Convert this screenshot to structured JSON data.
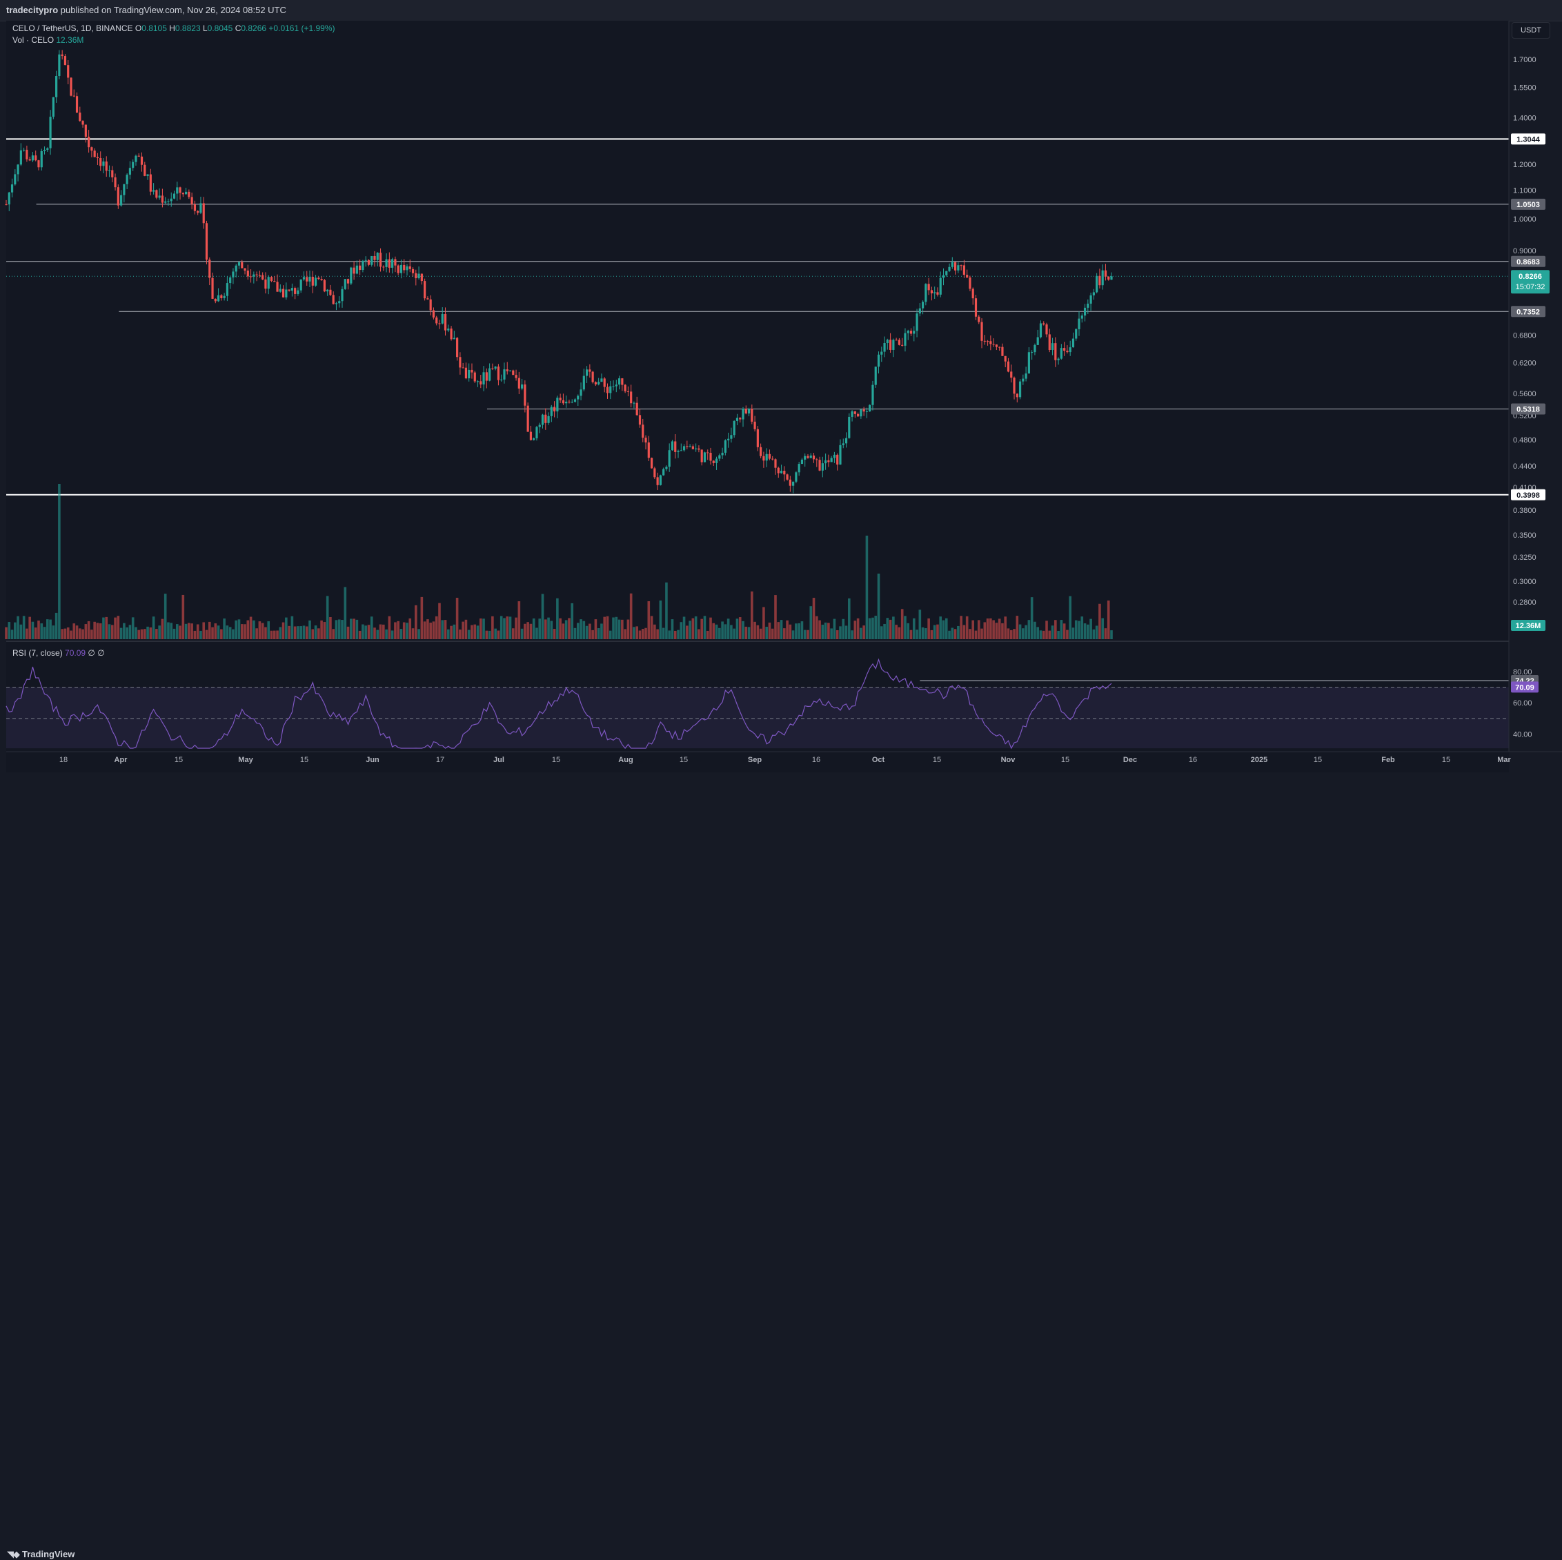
{
  "publisher": {
    "user": "tradecitypro",
    "text": " published on TradingView.com, Nov 26, 2024 08:52 UTC"
  },
  "legend": {
    "symbol": "CELO / TetherUS, 1D, BINANCE",
    "open_label": "O",
    "open": "0.8105",
    "high_label": "H",
    "high": "0.8823",
    "low_label": "L",
    "low": "0.8045",
    "close_label": "C",
    "close": "0.8266",
    "change": "+0.0161 (+1.99%)"
  },
  "volume_legend": {
    "label": "Vol · CELO",
    "value": "12.36M"
  },
  "rsi_legend": {
    "label": "RSI (7, close)",
    "value": "70.09",
    "extra": "∅ ∅"
  },
  "currency_button": "USDT",
  "footer": {
    "brand": "TradingView"
  },
  "colors": {
    "up": "#26a69a",
    "down": "#ef5350",
    "rsi": "#7e57c2",
    "background": "#131722",
    "grid_text": "#b2b5be"
  },
  "chart_data": {
    "type": "candlestick",
    "symbol": "CELOUSDT",
    "timeframe": "1D",
    "y_scale": "log",
    "y_ticks": [
      0.28,
      0.3,
      0.325,
      0.35,
      0.38,
      0.41,
      0.44,
      0.48,
      0.52,
      0.56,
      0.62,
      0.68,
      0.9,
      1.0,
      1.1,
      1.2,
      1.4,
      1.55,
      1.7
    ],
    "y_tick_labels": [
      "0.2800",
      "0.3000",
      "0.3250",
      "0.3500",
      "0.3800",
      "0.4100",
      "0.4400",
      "0.4800",
      "0.5200",
      "0.5600",
      "0.6200",
      "0.6800",
      "0.9000",
      "1.0000",
      "1.1000",
      "1.2000",
      "1.4000",
      "1.5500",
      "1.7000"
    ],
    "x_labels": [
      "18",
      "Apr",
      "15",
      "May",
      "15",
      "Jun",
      "17",
      "Jul",
      "15",
      "Aug",
      "15",
      "Sep",
      "16",
      "Oct",
      "15",
      "Nov",
      "15",
      "Dec",
      "16",
      "2025",
      "15",
      "Feb",
      "15",
      "Mar"
    ],
    "horizontal_levels": [
      {
        "price": 1.3044,
        "label": "1.3044",
        "style": "white-thick",
        "start_frac": 0
      },
      {
        "price": 1.0503,
        "label": "1.0503",
        "style": "grey",
        "start_frac": 0.02
      },
      {
        "price": 0.8683,
        "label": "0.8683",
        "style": "grey",
        "start_frac": 0
      },
      {
        "price": 0.7352,
        "label": "0.7352",
        "style": "grey",
        "start_frac": 0.075
      },
      {
        "price": 0.5318,
        "label": "0.5318",
        "style": "grey",
        "start_frac": 0.32
      },
      {
        "price": 0.3998,
        "label": "0.3998",
        "style": "white-thick",
        "start_frac": 0
      }
    ],
    "last_price": {
      "price": 0.8266,
      "label": "0.8266",
      "countdown": "15:07:32"
    },
    "volume_last_label": "12.36M",
    "rsi": {
      "period": 7,
      "last": 70.09,
      "level_label": "74.22",
      "ticks": [
        40,
        60,
        80
      ],
      "tick_labels": [
        "40.00",
        "60.00",
        "80.00"
      ],
      "band": [
        30,
        70
      ]
    },
    "keypoints": [
      [
        0,
        1.05
      ],
      [
        5,
        1.26
      ],
      [
        10,
        1.2
      ],
      [
        14,
        1.25
      ],
      [
        18,
        1.74
      ],
      [
        23,
        1.48
      ],
      [
        28,
        1.28
      ],
      [
        33,
        1.2
      ],
      [
        38,
        1.07
      ],
      [
        44,
        1.26
      ],
      [
        50,
        1.08
      ],
      [
        55,
        1.07
      ],
      [
        60,
        1.1
      ],
      [
        66,
        1.03
      ],
      [
        70,
        0.76
      ],
      [
        74,
        0.79
      ],
      [
        78,
        0.86
      ],
      [
        84,
        0.84
      ],
      [
        90,
        0.8
      ],
      [
        96,
        0.78
      ],
      [
        100,
        0.8
      ],
      [
        106,
        0.83
      ],
      [
        112,
        0.75
      ],
      [
        118,
        0.85
      ],
      [
        124,
        0.88
      ],
      [
        130,
        0.86
      ],
      [
        136,
        0.84
      ],
      [
        140,
        0.82
      ],
      [
        145,
        0.73
      ],
      [
        150,
        0.7
      ],
      [
        155,
        0.6
      ],
      [
        160,
        0.58
      ],
      [
        165,
        0.6
      ],
      [
        170,
        0.6
      ],
      [
        175,
        0.57
      ],
      [
        178,
        0.47
      ],
      [
        183,
        0.52
      ],
      [
        188,
        0.55
      ],
      [
        193,
        0.56
      ],
      [
        198,
        0.6
      ],
      [
        203,
        0.57
      ],
      [
        208,
        0.58
      ],
      [
        213,
        0.53
      ],
      [
        218,
        0.46
      ],
      [
        221,
        0.41
      ],
      [
        226,
        0.47
      ],
      [
        232,
        0.47
      ],
      [
        238,
        0.45
      ],
      [
        243,
        0.46
      ],
      [
        248,
        0.52
      ],
      [
        252,
        0.53
      ],
      [
        256,
        0.46
      ],
      [
        262,
        0.44
      ],
      [
        266,
        0.41
      ],
      [
        270,
        0.45
      ],
      [
        276,
        0.44
      ],
      [
        282,
        0.45
      ],
      [
        287,
        0.52
      ],
      [
        292,
        0.52
      ],
      [
        296,
        0.64
      ],
      [
        300,
        0.66
      ],
      [
        304,
        0.66
      ],
      [
        308,
        0.7
      ],
      [
        312,
        0.8
      ],
      [
        316,
        0.79
      ],
      [
        320,
        0.86
      ],
      [
        324,
        0.85
      ],
      [
        328,
        0.77
      ],
      [
        331,
        0.68
      ],
      [
        335,
        0.65
      ],
      [
        339,
        0.63
      ],
      [
        343,
        0.55
      ],
      [
        347,
        0.63
      ],
      [
        351,
        0.71
      ],
      [
        356,
        0.63
      ],
      [
        361,
        0.66
      ],
      [
        366,
        0.74
      ],
      [
        370,
        0.82
      ],
      [
        375,
        0.83
      ]
    ],
    "rsi_keypoints": [
      [
        0,
        55
      ],
      [
        4,
        60
      ],
      [
        9,
        82
      ],
      [
        14,
        62
      ],
      [
        20,
        48
      ],
      [
        26,
        52
      ],
      [
        31,
        58
      ],
      [
        38,
        35
      ],
      [
        44,
        32
      ],
      [
        50,
        55
      ],
      [
        55,
        40
      ],
      [
        60,
        35
      ],
      [
        68,
        28
      ],
      [
        74,
        38
      ],
      [
        80,
        56
      ],
      [
        86,
        44
      ],
      [
        92,
        32
      ],
      [
        98,
        62
      ],
      [
        104,
        70
      ],
      [
        110,
        52
      ],
      [
        116,
        48
      ],
      [
        122,
        62
      ],
      [
        128,
        38
      ],
      [
        134,
        30
      ],
      [
        140,
        28
      ],
      [
        146,
        35
      ],
      [
        152,
        30
      ],
      [
        158,
        45
      ],
      [
        164,
        58
      ],
      [
        170,
        40
      ],
      [
        176,
        42
      ],
      [
        182,
        55
      ],
      [
        188,
        65
      ],
      [
        192,
        70
      ],
      [
        198,
        48
      ],
      [
        204,
        38
      ],
      [
        210,
        32
      ],
      [
        216,
        28
      ],
      [
        222,
        45
      ],
      [
        228,
        38
      ],
      [
        234,
        45
      ],
      [
        240,
        56
      ],
      [
        246,
        70
      ],
      [
        252,
        40
      ],
      [
        258,
        36
      ],
      [
        264,
        42
      ],
      [
        270,
        54
      ],
      [
        276,
        62
      ],
      [
        282,
        55
      ],
      [
        288,
        60
      ],
      [
        292,
        78
      ],
      [
        296,
        86
      ],
      [
        300,
        76
      ],
      [
        306,
        72
      ],
      [
        312,
        70
      ],
      [
        318,
        65
      ],
      [
        324,
        72
      ],
      [
        330,
        50
      ],
      [
        336,
        38
      ],
      [
        342,
        32
      ],
      [
        348,
        54
      ],
      [
        354,
        68
      ],
      [
        360,
        50
      ],
      [
        366,
        62
      ],
      [
        370,
        72
      ],
      [
        375,
        70
      ]
    ]
  }
}
